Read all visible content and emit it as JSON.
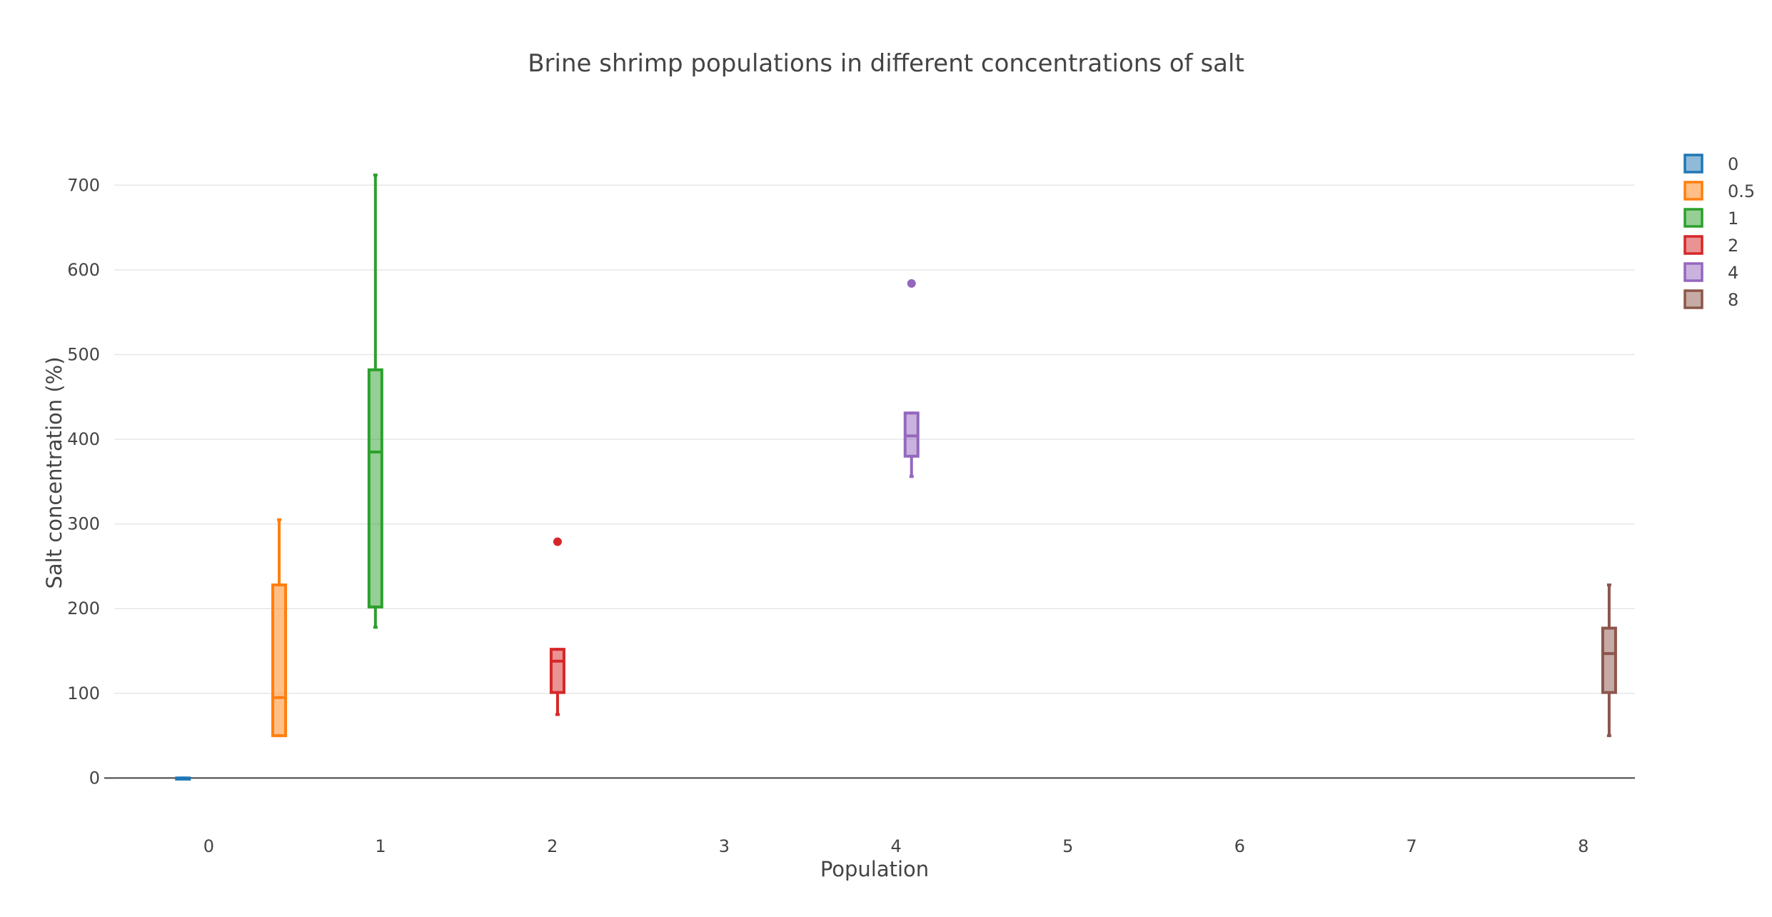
{
  "chart_data": {
    "type": "box",
    "title": "Brine shrimp populations in different concentrations of salt",
    "xlabel": "Population",
    "ylabel": "Salt concentration (%)",
    "xlim": [
      -0.55,
      8.3
    ],
    "ylim": [
      -30,
      750
    ],
    "x_ticks": [
      0,
      1,
      2,
      3,
      4,
      5,
      6,
      7,
      8
    ],
    "y_ticks": [
      0,
      100,
      200,
      300,
      400,
      500,
      600,
      700
    ],
    "grid": true,
    "legend_position": "top-right",
    "series": [
      {
        "name": "0",
        "color": "#1f77b4",
        "x": -0.15,
        "min": 0,
        "q1": 0,
        "median": 0,
        "q3": 0,
        "max": 0,
        "outliers": []
      },
      {
        "name": "0.5",
        "color": "#ff7f0e",
        "x": 0.41,
        "min": 50,
        "q1": 50,
        "median": 95,
        "q3": 228,
        "max": 305,
        "outliers": []
      },
      {
        "name": "1",
        "color": "#2ca02c",
        "x": 0.97,
        "min": 178,
        "q1": 202,
        "median": 385,
        "q3": 482,
        "max": 712,
        "outliers": []
      },
      {
        "name": "2",
        "color": "#d62728",
        "x": 2.03,
        "min": 75,
        "q1": 101,
        "median": 138,
        "q3": 152,
        "max": 152,
        "outliers": [
          279
        ]
      },
      {
        "name": "4",
        "color": "#9467bd",
        "x": 4.09,
        "min": 356,
        "q1": 380,
        "median": 404,
        "q3": 431,
        "max": 431,
        "outliers": [
          584
        ]
      },
      {
        "name": "8",
        "color": "#8c564b",
        "x": 8.15,
        "min": 50,
        "q1": 101,
        "median": 147,
        "q3": 177,
        "max": 228,
        "outliers": []
      }
    ]
  }
}
